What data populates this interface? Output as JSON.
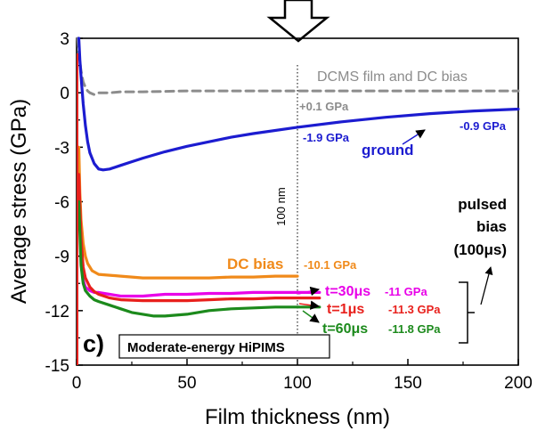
{
  "chart_data": {
    "type": "line",
    "xlabel": "Film thickness (nm)",
    "ylabel": "Average stress (GPa)",
    "xlim": [
      0,
      200
    ],
    "ylim": [
      -15,
      3
    ],
    "x_ticks": [
      "0",
      "50",
      "100",
      "150",
      "200"
    ],
    "y_ticks": [
      "3",
      "0",
      "-3",
      "-6",
      "-9",
      "-12",
      "-15"
    ],
    "grid": false,
    "reference_line": {
      "x": 100,
      "label": "100 nm",
      "style": "dotted"
    },
    "panel_label": "c)",
    "panel_caption": "Moderate-energy HiPIMS",
    "series": [
      {
        "name": "DCMS film and DC bias",
        "color": "#8c8c8c",
        "style": "dashed",
        "x": [
          0.5,
          1,
          2,
          3,
          4,
          5,
          6,
          8,
          10,
          15,
          20,
          30,
          50,
          100,
          150,
          200
        ],
        "y": [
          3.0,
          2.2,
          1.2,
          0.6,
          0.3,
          0.1,
          0.0,
          -0.1,
          0.0,
          0.0,
          0.05,
          0.05,
          0.1,
          0.1,
          0.1,
          0.1
        ]
      },
      {
        "name": "ground",
        "color": "#1c1cd0",
        "style": "solid",
        "x": [
          1,
          1.5,
          2,
          3,
          4,
          5,
          6,
          8,
          10,
          12,
          15,
          20,
          25,
          30,
          40,
          50,
          60,
          70,
          80,
          100,
          120,
          140,
          160,
          180,
          200
        ],
        "y": [
          3.0,
          1.8,
          0.9,
          -0.6,
          -1.8,
          -2.7,
          -3.3,
          -3.9,
          -4.2,
          -4.25,
          -4.2,
          -4.0,
          -3.8,
          -3.6,
          -3.25,
          -2.95,
          -2.7,
          -2.45,
          -2.25,
          -1.9,
          -1.6,
          -1.35,
          -1.15,
          -1.0,
          -0.9
        ]
      },
      {
        "name": "DC bias",
        "color": "#f08a1a",
        "style": "solid",
        "x": [
          1,
          1.5,
          2,
          3,
          4,
          5,
          7,
          10,
          15,
          20,
          30,
          40,
          50,
          60,
          70,
          80,
          90,
          100
        ],
        "y": [
          -3.0,
          -5.5,
          -7.0,
          -8.3,
          -9.0,
          -9.4,
          -9.8,
          -10.0,
          -10.05,
          -10.1,
          -10.2,
          -10.2,
          -10.2,
          -10.2,
          -10.15,
          -10.15,
          -10.1,
          -10.1
        ]
      },
      {
        "name": "t=30μs",
        "color": "#e800e8",
        "style": "solid",
        "x": [
          1,
          2,
          3,
          4,
          6,
          8,
          10,
          15,
          20,
          30,
          40,
          50,
          60,
          70,
          80,
          90,
          100,
          110
        ],
        "y": [
          -5.0,
          -9.0,
          -10.3,
          -10.7,
          -10.9,
          -11.0,
          -11.0,
          -11.1,
          -11.2,
          -11.2,
          -11.1,
          -11.1,
          -11.05,
          -11.05,
          -11.0,
          -11.0,
          -11.0,
          -11.0
        ]
      },
      {
        "name": "t=1μs",
        "color": "#e8201c",
        "style": "solid",
        "x": [
          1,
          2,
          3,
          4,
          6,
          8,
          10,
          15,
          20,
          30,
          40,
          50,
          60,
          70,
          80,
          90,
          100,
          110
        ],
        "y": [
          -4.5,
          -8.0,
          -9.6,
          -10.2,
          -10.7,
          -10.95,
          -11.1,
          -11.3,
          -11.4,
          -11.45,
          -11.45,
          -11.45,
          -11.4,
          -11.35,
          -11.35,
          -11.3,
          -11.3,
          -11.3
        ]
      },
      {
        "name": "t=60μs",
        "color": "#1c8a1c",
        "style": "solid",
        "x": [
          1,
          2,
          3,
          4,
          6,
          8,
          10,
          15,
          20,
          25,
          30,
          35,
          40,
          50,
          60,
          70,
          80,
          90,
          100,
          110
        ],
        "y": [
          -6.0,
          -9.5,
          -10.5,
          -10.9,
          -11.2,
          -11.4,
          -11.5,
          -11.7,
          -11.9,
          -12.1,
          -12.2,
          -12.3,
          -12.3,
          -12.2,
          -12.0,
          -11.9,
          -11.85,
          -11.8,
          -11.8,
          -11.8
        ]
      }
    ],
    "annotations": {
      "dcms_label": "DCMS film and DC bias",
      "dcms_value": "+0.1 GPa",
      "ground_label": "ground",
      "ground_value_100": "-1.9 GPa",
      "ground_value_200": "-0.9 GPa",
      "dcbias_label": "DC bias",
      "dcbias_value": "-10.1 GPa",
      "t30_label": "t=30μs",
      "t30_value": "-11 GPa",
      "t1_label": "t=1μs",
      "t1_value": "-11.3 GPa",
      "t60_label": "t=60μs",
      "t60_value": "-11.8 GPa",
      "pulsed_line1": "pulsed",
      "pulsed_line2": "bias",
      "pulsed_line3": "(100μs)"
    }
  }
}
